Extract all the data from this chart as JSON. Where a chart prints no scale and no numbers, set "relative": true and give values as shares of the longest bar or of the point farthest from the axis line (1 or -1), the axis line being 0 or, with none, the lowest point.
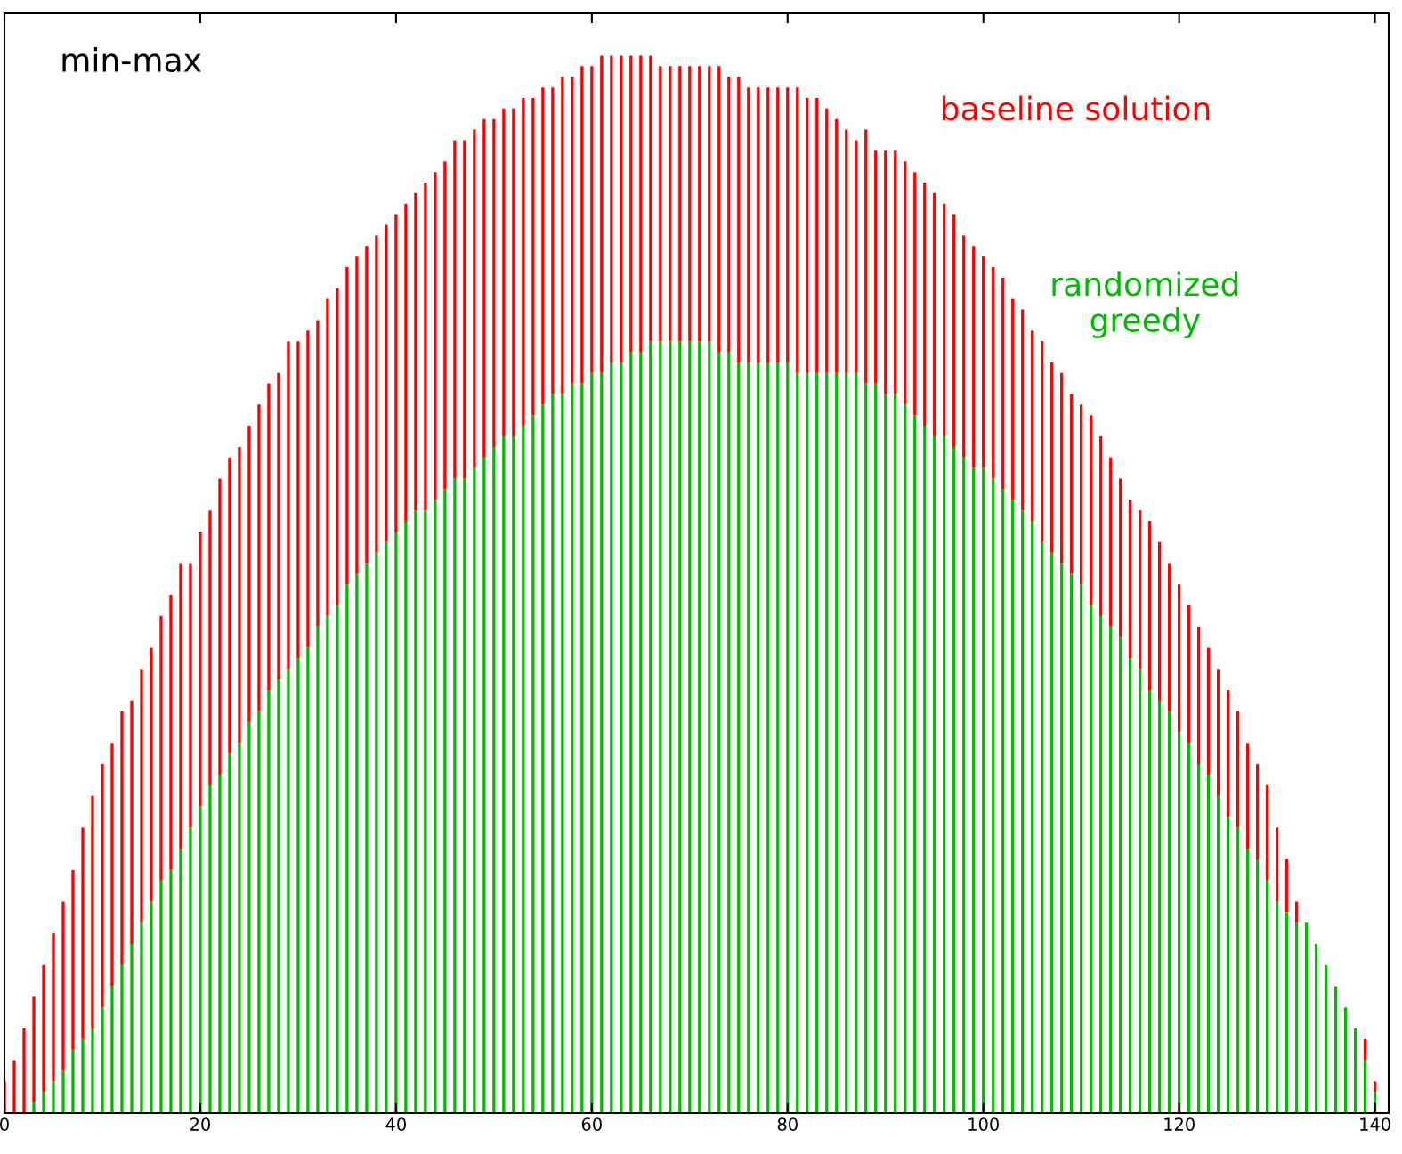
{
  "chart_data": {
    "type": "bar",
    "title": "min-max",
    "relative": true,
    "stacked": true,
    "grid": false,
    "legend": false,
    "x": [
      0,
      1,
      2,
      3,
      4,
      5,
      6,
      7,
      8,
      9,
      10,
      11,
      12,
      13,
      14,
      15,
      16,
      17,
      18,
      19,
      20,
      21,
      22,
      23,
      24,
      25,
      26,
      27,
      28,
      29,
      30,
      31,
      32,
      33,
      34,
      35,
      36,
      37,
      38,
      39,
      40,
      41,
      42,
      43,
      44,
      45,
      46,
      47,
      48,
      49,
      50,
      51,
      52,
      53,
      54,
      55,
      56,
      57,
      58,
      59,
      60,
      61,
      62,
      63,
      64,
      65,
      66,
      67,
      68,
      69,
      70,
      71,
      72,
      73,
      74,
      75,
      76,
      77,
      78,
      79,
      80,
      81,
      82,
      83,
      84,
      85,
      86,
      87,
      88,
      89,
      90,
      91,
      92,
      93,
      94,
      95,
      96,
      97,
      98,
      99,
      100,
      101,
      102,
      103,
      104,
      105,
      106,
      107,
      108,
      109,
      110,
      111,
      112,
      113,
      114,
      115,
      116,
      117,
      118,
      119,
      120,
      121,
      122,
      123,
      124,
      125,
      126,
      127,
      128,
      129,
      130,
      131,
      132,
      133,
      134,
      135,
      136,
      137,
      138,
      139,
      140
    ],
    "xlim": [
      0,
      141.4
    ],
    "xticks": [
      0,
      20,
      40,
      60,
      80,
      100,
      120,
      140
    ],
    "series": [
      {
        "name": "randomized\ngreedy",
        "color": "#00bb00",
        "values": [
          null,
          null,
          null,
          0.01,
          0.02,
          0.03,
          0.04,
          0.06,
          0.07,
          0.08,
          0.1,
          0.12,
          0.14,
          0.16,
          0.18,
          0.2,
          0.22,
          0.23,
          0.25,
          0.27,
          0.29,
          0.31,
          0.32,
          0.34,
          0.35,
          0.37,
          0.38,
          0.4,
          0.41,
          0.42,
          0.43,
          0.44,
          0.46,
          0.47,
          0.48,
          0.5,
          0.51,
          0.52,
          0.53,
          0.54,
          0.55,
          0.56,
          0.57,
          0.57,
          0.58,
          0.59,
          0.6,
          0.6,
          0.61,
          0.62,
          0.63,
          0.64,
          0.64,
          0.65,
          0.66,
          0.67,
          0.68,
          0.68,
          0.69,
          0.69,
          0.7,
          0.7,
          0.71,
          0.71,
          0.72,
          0.72,
          0.73,
          0.73,
          0.73,
          0.73,
          0.73,
          0.73,
          0.73,
          0.72,
          0.72,
          0.71,
          0.71,
          0.71,
          0.71,
          0.71,
          0.71,
          0.7,
          0.7,
          0.7,
          0.7,
          0.7,
          0.7,
          0.7,
          0.69,
          0.69,
          0.68,
          0.68,
          0.67,
          0.66,
          0.65,
          0.64,
          0.64,
          0.63,
          0.62,
          0.61,
          0.61,
          0.6,
          0.59,
          0.58,
          0.57,
          0.56,
          0.54,
          0.53,
          0.52,
          0.51,
          0.5,
          0.48,
          0.47,
          0.46,
          0.45,
          0.43,
          0.42,
          0.4,
          0.39,
          0.38,
          0.36,
          0.35,
          0.33,
          0.32,
          0.3,
          0.28,
          0.27,
          0.25,
          0.24,
          0.22,
          0.2,
          0.19,
          0.18,
          0.18,
          0.16,
          0.14,
          0.12,
          0.1,
          0.08,
          0.05,
          0.02
        ]
      },
      {
        "name": "baseline solution",
        "color": "#ff0000",
        "values": [
          0.03,
          0.05,
          0.08,
          0.1,
          0.12,
          0.14,
          0.16,
          0.17,
          0.2,
          0.22,
          0.23,
          0.23,
          0.24,
          0.23,
          0.24,
          0.24,
          0.25,
          0.26,
          0.27,
          0.25,
          0.26,
          0.26,
          0.28,
          0.28,
          0.28,
          0.28,
          0.29,
          0.29,
          0.29,
          0.31,
          0.3,
          0.3,
          0.29,
          0.3,
          0.3,
          0.3,
          0.3,
          0.3,
          0.3,
          0.3,
          0.3,
          0.3,
          0.3,
          0.31,
          0.31,
          0.31,
          0.32,
          0.32,
          0.32,
          0.32,
          0.31,
          0.31,
          0.31,
          0.31,
          0.3,
          0.3,
          0.29,
          0.3,
          0.29,
          0.3,
          0.29,
          0.3,
          0.29,
          0.29,
          0.28,
          0.28,
          0.27,
          0.26,
          0.26,
          0.26,
          0.26,
          0.26,
          0.26,
          0.27,
          0.26,
          0.27,
          0.26,
          0.26,
          0.26,
          0.26,
          0.26,
          0.27,
          0.26,
          0.26,
          0.25,
          0.24,
          0.23,
          0.22,
          0.24,
          0.22,
          0.23,
          0.23,
          0.23,
          0.23,
          0.23,
          0.23,
          0.22,
          0.22,
          0.21,
          0.21,
          0.2,
          0.2,
          0.2,
          0.19,
          0.19,
          0.18,
          0.19,
          0.18,
          0.18,
          0.17,
          0.17,
          0.18,
          0.17,
          0.16,
          0.15,
          0.15,
          0.15,
          0.16,
          0.15,
          0.14,
          0.14,
          0.13,
          0.13,
          0.12,
          0.12,
          0.12,
          0.11,
          0.1,
          0.09,
          0.09,
          0.07,
          0.05,
          0.02,
          null,
          null,
          null,
          null,
          null,
          null,
          0.02,
          0.01
        ]
      }
    ]
  }
}
